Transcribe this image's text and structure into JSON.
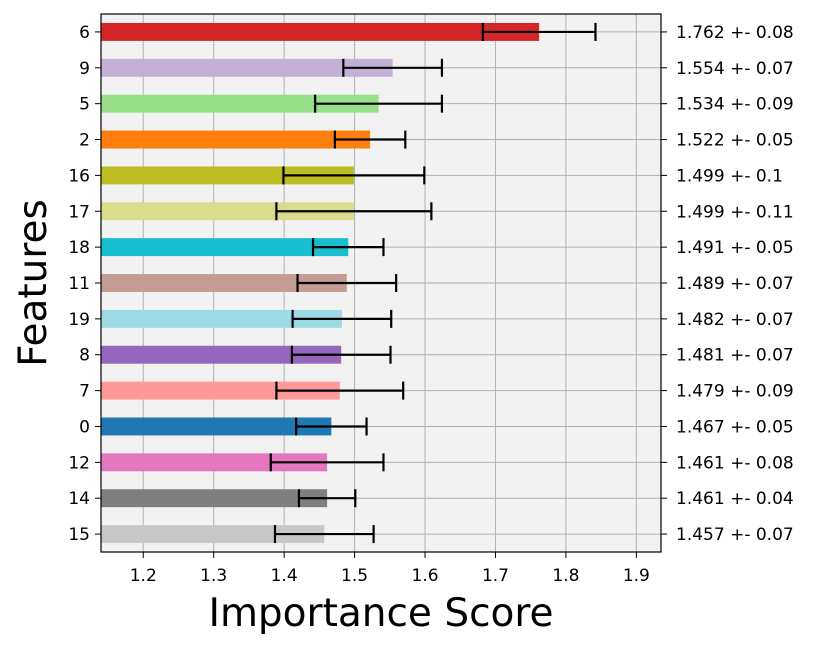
{
  "chart_data": {
    "type": "bar",
    "orientation": "horizontal",
    "xlabel": "Importance Score",
    "ylabel": "Features",
    "xlim": [
      1.14,
      1.935
    ],
    "xticks": [
      "1.2",
      "1.3",
      "1.4",
      "1.5",
      "1.6",
      "1.7",
      "1.8",
      "1.9"
    ],
    "grid": true,
    "background_color": "#f2f2f2",
    "error_bar_color": "#000000",
    "bars": [
      {
        "feature": "6",
        "value": 1.762,
        "error": 0.08,
        "label": "1.762 +- 0.08",
        "color": "#d62728"
      },
      {
        "feature": "9",
        "value": 1.554,
        "error": 0.07,
        "label": "1.554 +- 0.07",
        "color": "#c5b0d5"
      },
      {
        "feature": "5",
        "value": 1.534,
        "error": 0.09,
        "label": "1.534 +- 0.09",
        "color": "#98df8a"
      },
      {
        "feature": "2",
        "value": 1.522,
        "error": 0.05,
        "label": "1.522 +- 0.05",
        "color": "#ff7f0e"
      },
      {
        "feature": "16",
        "value": 1.499,
        "error": 0.1,
        "label": "1.499 +- 0.1",
        "color": "#bcbd22"
      },
      {
        "feature": "17",
        "value": 1.499,
        "error": 0.11,
        "label": "1.499 +- 0.11",
        "color": "#dbdb8d"
      },
      {
        "feature": "18",
        "value": 1.491,
        "error": 0.05,
        "label": "1.491 +- 0.05",
        "color": "#17becf"
      },
      {
        "feature": "11",
        "value": 1.489,
        "error": 0.07,
        "label": "1.489 +- 0.07",
        "color": "#c49c94"
      },
      {
        "feature": "19",
        "value": 1.482,
        "error": 0.07,
        "label": "1.482 +- 0.07",
        "color": "#9edae5"
      },
      {
        "feature": "8",
        "value": 1.481,
        "error": 0.07,
        "label": "1.481 +- 0.07",
        "color": "#9467bd"
      },
      {
        "feature": "7",
        "value": 1.479,
        "error": 0.09,
        "label": "1.479 +- 0.09",
        "color": "#ff9896"
      },
      {
        "feature": "0",
        "value": 1.467,
        "error": 0.05,
        "label": "1.467 +- 0.05",
        "color": "#1f77b4"
      },
      {
        "feature": "12",
        "value": 1.461,
        "error": 0.08,
        "label": "1.461 +- 0.08",
        "color": "#e377c2"
      },
      {
        "feature": "14",
        "value": 1.461,
        "error": 0.04,
        "label": "1.461 +- 0.04",
        "color": "#7f7f7f"
      },
      {
        "feature": "15",
        "value": 1.457,
        "error": 0.07,
        "label": "1.457 +- 0.07",
        "color": "#c7c7c7"
      }
    ]
  }
}
